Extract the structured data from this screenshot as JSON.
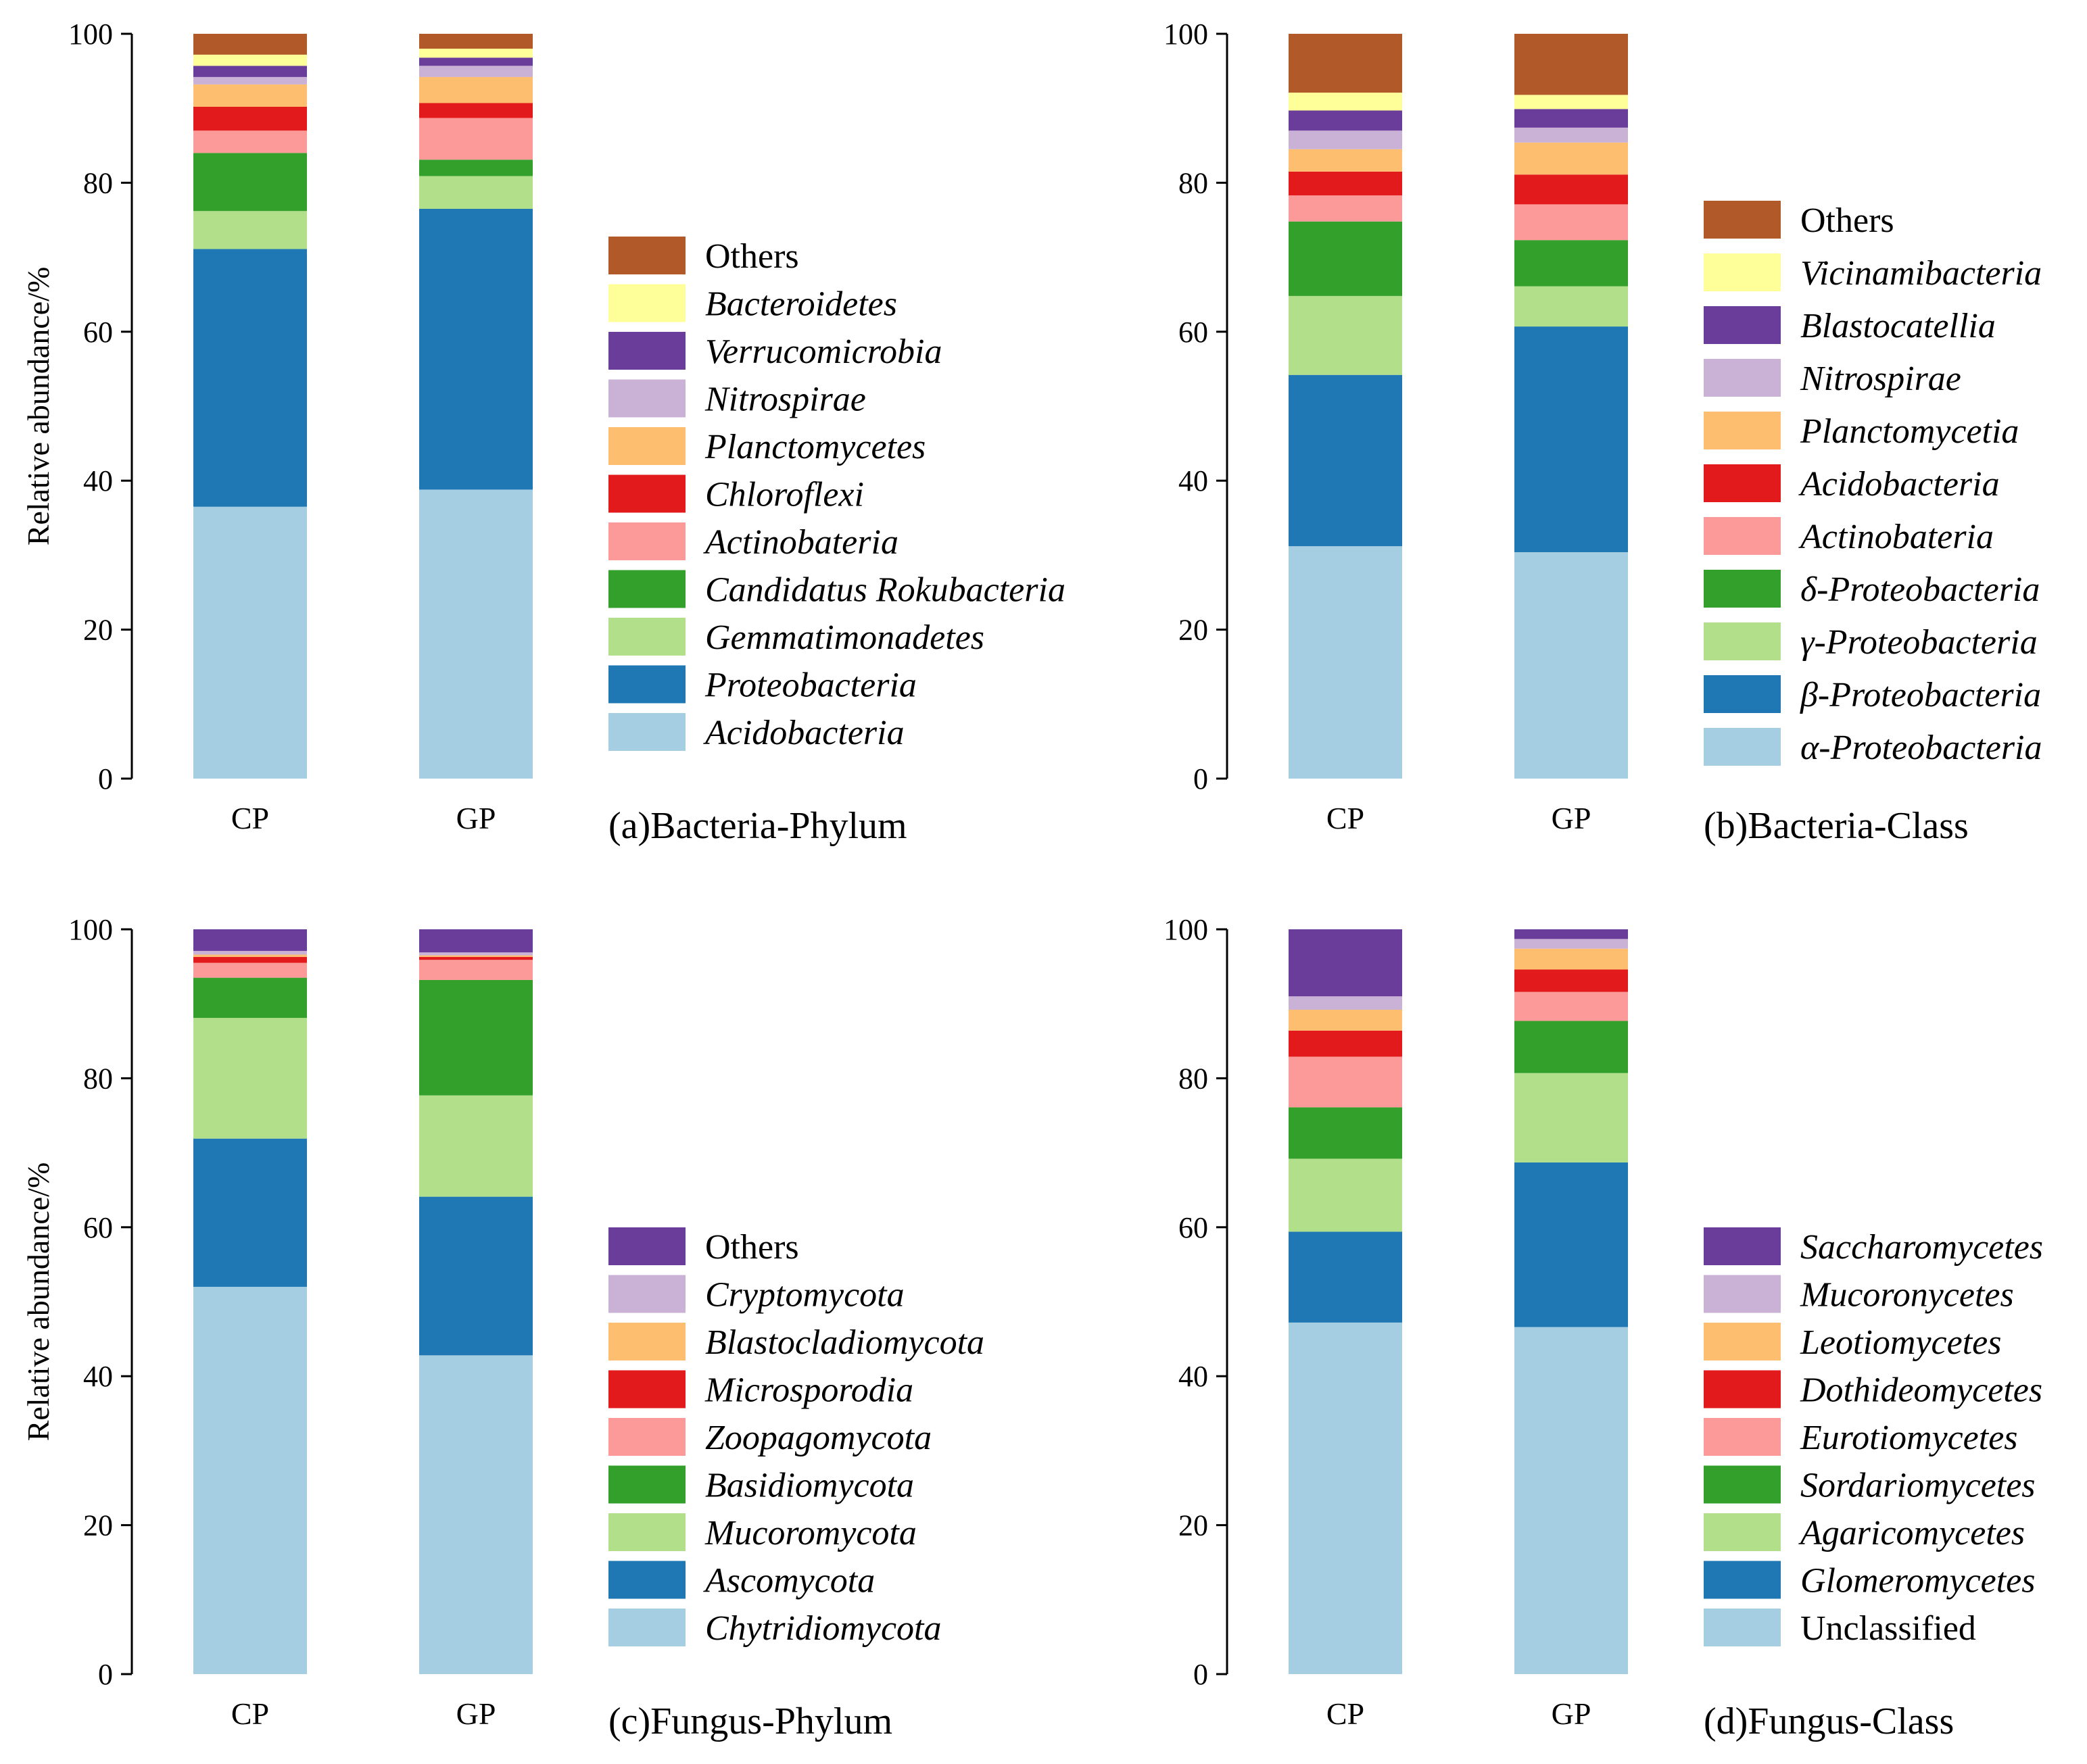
{
  "chart_data": [
    {
      "type": "bar",
      "stacked": true,
      "title": "(a)Bacteria-Phylum",
      "xlabel": "",
      "ylabel": "Relative abundance/%",
      "ylim": [
        0,
        100
      ],
      "yticks": [
        0,
        20,
        40,
        60,
        80,
        100
      ],
      "categories": [
        "CP",
        "GP"
      ],
      "legend_position": "right",
      "series": [
        {
          "name": "Acidobacteria",
          "italic": true,
          "color": "#a6cee3",
          "values": [
            36.5,
            38.8
          ]
        },
        {
          "name": "Proteobacteria",
          "italic": true,
          "color": "#1f78b4",
          "values": [
            34.6,
            37.7
          ]
        },
        {
          "name": "Gemmatimonadetes",
          "italic": true,
          "color": "#b2df8a",
          "values": [
            5.1,
            4.4
          ]
        },
        {
          "name": "Candidatus Rokubacteria",
          "italic": true,
          "color": "#33a02c",
          "values": [
            7.8,
            2.2
          ]
        },
        {
          "name": "Actinobateria",
          "italic": true,
          "color": "#fb9a99",
          "values": [
            3.0,
            5.6
          ]
        },
        {
          "name": "Chloroflexi",
          "italic": true,
          "color": "#e31a1c",
          "values": [
            3.2,
            2.0
          ]
        },
        {
          "name": "Planctomycetes",
          "italic": true,
          "color": "#fdbf6f",
          "values": [
            3.0,
            3.5
          ]
        },
        {
          "name": "Nitrospirae",
          "italic": true,
          "color": "#cab2d6",
          "values": [
            1.0,
            1.5
          ]
        },
        {
          "name": "Verrucomicrobia",
          "italic": true,
          "color": "#6a3d9a",
          "values": [
            1.5,
            1.1
          ]
        },
        {
          "name": "Bacteroidetes",
          "italic": true,
          "color": "#ffff99",
          "values": [
            1.5,
            1.2
          ]
        },
        {
          "name": "Others",
          "italic": false,
          "color": "#b15928",
          "values": [
            2.8,
            2.0
          ]
        }
      ]
    },
    {
      "type": "bar",
      "stacked": true,
      "title": "(b)Bacteria-Class",
      "xlabel": "",
      "ylabel": "",
      "ylim": [
        0,
        100
      ],
      "yticks": [
        0,
        20,
        40,
        60,
        80,
        100
      ],
      "categories": [
        "CP",
        "GP"
      ],
      "legend_position": "right",
      "series": [
        {
          "name": "α-Proteobacteria",
          "italic": true,
          "color": "#a6cee3",
          "values": [
            31.2,
            30.4
          ]
        },
        {
          "name": "β-Proteobacteria",
          "italic": true,
          "color": "#1f78b4",
          "values": [
            23.0,
            30.3
          ]
        },
        {
          "name": "γ-Proteobacteria",
          "italic": true,
          "color": "#b2df8a",
          "values": [
            10.6,
            5.4
          ]
        },
        {
          "name": "δ-Proteobacteria",
          "italic": true,
          "color": "#33a02c",
          "values": [
            10.0,
            6.2
          ]
        },
        {
          "name": "Actinobateria",
          "italic": true,
          "color": "#fb9a99",
          "values": [
            3.5,
            4.8
          ]
        },
        {
          "name": "Acidobacteria",
          "italic": true,
          "color": "#e31a1c",
          "values": [
            3.2,
            4.0
          ]
        },
        {
          "name": "Planctomycetia",
          "italic": true,
          "color": "#fdbf6f",
          "values": [
            3.0,
            4.3
          ]
        },
        {
          "name": "Nitrospirae",
          "italic": true,
          "color": "#cab2d6",
          "values": [
            2.5,
            2.0
          ]
        },
        {
          "name": "Blastocatellia",
          "italic": true,
          "color": "#6a3d9a",
          "values": [
            2.7,
            2.5
          ]
        },
        {
          "name": "Vicinamibacteria",
          "italic": true,
          "color": "#ffff99",
          "values": [
            2.4,
            1.9
          ]
        },
        {
          "name": "Others",
          "italic": false,
          "color": "#b15928",
          "values": [
            7.9,
            8.2
          ]
        }
      ]
    },
    {
      "type": "bar",
      "stacked": true,
      "title": "(c)Fungus-Phylum",
      "xlabel": "",
      "ylabel": "Relative abundance/%",
      "ylim": [
        0,
        100
      ],
      "yticks": [
        0,
        20,
        40,
        60,
        80,
        100
      ],
      "categories": [
        "CP",
        "GP"
      ],
      "legend_position": "right",
      "series": [
        {
          "name": "Chytridiomycota",
          "italic": true,
          "color": "#a6cee3",
          "values": [
            52.0,
            42.8
          ]
        },
        {
          "name": "Ascomycota",
          "italic": true,
          "color": "#1f78b4",
          "values": [
            19.9,
            21.3
          ]
        },
        {
          "name": "Mucoromycota",
          "italic": true,
          "color": "#b2df8a",
          "values": [
            16.2,
            13.6
          ]
        },
        {
          "name": "Basidiomycota",
          "italic": true,
          "color": "#33a02c",
          "values": [
            5.4,
            15.5
          ]
        },
        {
          "name": "Zoopagomycota",
          "italic": true,
          "color": "#fb9a99",
          "values": [
            2.0,
            2.7
          ]
        },
        {
          "name": "Microsporodia",
          "italic": true,
          "color": "#e31a1c",
          "values": [
            0.8,
            0.4
          ]
        },
        {
          "name": "Blastocladiomycota",
          "italic": true,
          "color": "#fdbf6f",
          "values": [
            0.3,
            0.2
          ]
        },
        {
          "name": "Cryptomycota",
          "italic": true,
          "color": "#cab2d6",
          "values": [
            0.5,
            0.4
          ]
        },
        {
          "name": "Others",
          "italic": false,
          "color": "#6a3d9a",
          "values": [
            2.9,
            3.1
          ]
        }
      ]
    },
    {
      "type": "bar",
      "stacked": true,
      "title": "(d)Fungus-Class",
      "xlabel": "",
      "ylabel": "",
      "ylim": [
        0,
        100
      ],
      "yticks": [
        0,
        20,
        40,
        60,
        80,
        100
      ],
      "categories": [
        "CP",
        "GP"
      ],
      "legend_position": "right",
      "series": [
        {
          "name": "Unclassified",
          "italic": false,
          "color": "#a6cee3",
          "values": [
            47.2,
            46.6
          ]
        },
        {
          "name": "Glomeromycetes",
          "italic": true,
          "color": "#1f78b4",
          "values": [
            12.2,
            22.1
          ]
        },
        {
          "name": "Agaricomycetes",
          "italic": true,
          "color": "#b2df8a",
          "values": [
            9.8,
            12.0
          ]
        },
        {
          "name": "Sordariomycetes",
          "italic": true,
          "color": "#33a02c",
          "values": [
            6.9,
            7.0
          ]
        },
        {
          "name": "Eurotiomycetes",
          "italic": true,
          "color": "#fb9a99",
          "values": [
            6.8,
            3.9
          ]
        },
        {
          "name": "Dothideomycetes",
          "italic": true,
          "color": "#e31a1c",
          "values": [
            3.5,
            3.0
          ]
        },
        {
          "name": "Leotiomycetes",
          "italic": true,
          "color": "#fdbf6f",
          "values": [
            2.8,
            2.8
          ]
        },
        {
          "name": "Mucoronycetes",
          "italic": true,
          "color": "#cab2d6",
          "values": [
            1.8,
            1.3
          ]
        },
        {
          "name": "Saccharomycetes",
          "italic": true,
          "color": "#6a3d9a",
          "values": [
            9.0,
            1.3
          ]
        }
      ]
    }
  ]
}
